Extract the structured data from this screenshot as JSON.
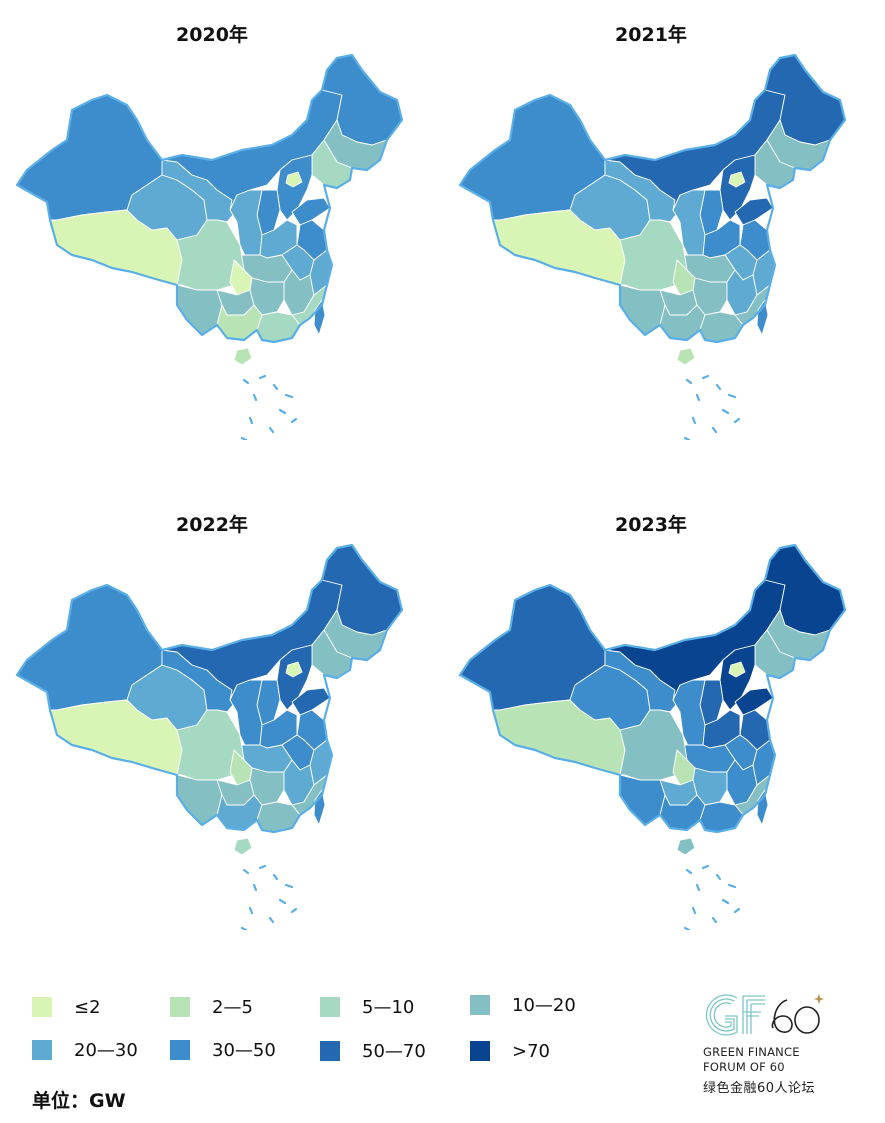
{
  "panels": [
    {
      "id": "p2020",
      "year": "2020年",
      "levels": {
        "xinjiang": 5,
        "tibet": 0,
        "qinghai": 4,
        "gansu": 4,
        "innerMongolia": 5,
        "heilongjiang": 5,
        "jilin": 3,
        "liaoning": 2,
        "hebei": 5,
        "beijing": 0,
        "shandong": 5,
        "shanxi": 5,
        "shaanxi": 4,
        "henan": 4,
        "jiangsu": 5,
        "anhui": 4,
        "hubei": 3,
        "sichuan": 2,
        "chongqing": 0,
        "yunnan": 3,
        "guizhou": 3,
        "hunan": 3,
        "jiangxi": 3,
        "zhejiang": 4,
        "fujian": 2,
        "guangxi": 1,
        "guangdong": 2,
        "hainan": 1,
        "taiwan": 5
      }
    },
    {
      "id": "p2021",
      "year": "2021年",
      "levels": {
        "xinjiang": 5,
        "tibet": 0,
        "qinghai": 4,
        "gansu": 4,
        "innerMongolia": 6,
        "heilongjiang": 6,
        "jilin": 3,
        "liaoning": 3,
        "hebei": 6,
        "beijing": 0,
        "shandong": 6,
        "shanxi": 5,
        "shaanxi": 4,
        "henan": 5,
        "jiangsu": 5,
        "anhui": 4,
        "hubei": 3,
        "sichuan": 2,
        "chongqing": 1,
        "yunnan": 3,
        "guizhou": 3,
        "hunan": 3,
        "jiangxi": 4,
        "zhejiang": 4,
        "fujian": 3,
        "guangxi": 3,
        "guangdong": 3,
        "hainan": 1,
        "taiwan": 5
      }
    },
    {
      "id": "p2022",
      "year": "2022年",
      "levels": {
        "xinjiang": 5,
        "tibet": 0,
        "qinghai": 4,
        "gansu": 5,
        "innerMongolia": 6,
        "heilongjiang": 6,
        "jilin": 3,
        "liaoning": 3,
        "hebei": 6,
        "beijing": 0,
        "shandong": 6,
        "shanxi": 5,
        "shaanxi": 5,
        "henan": 5,
        "jiangsu": 5,
        "anhui": 5,
        "hubei": 4,
        "sichuan": 2,
        "chongqing": 1,
        "yunnan": 3,
        "guizhou": 3,
        "hunan": 3,
        "jiangxi": 4,
        "zhejiang": 4,
        "fujian": 3,
        "guangxi": 4,
        "guangdong": 3,
        "hainan": 2,
        "taiwan": 5
      }
    },
    {
      "id": "p2023",
      "year": "2023年",
      "levels": {
        "xinjiang": 6,
        "tibet": 1,
        "qinghai": 5,
        "gansu": 5,
        "innerMongolia": 7,
        "heilongjiang": 7,
        "jilin": 3,
        "liaoning": 3,
        "hebei": 7,
        "beijing": 0,
        "shandong": 7,
        "shanxi": 6,
        "shaanxi": 5,
        "henan": 6,
        "jiangsu": 6,
        "anhui": 5,
        "hubei": 5,
        "sichuan": 3,
        "chongqing": 1,
        "yunnan": 5,
        "guizhou": 4,
        "hunan": 4,
        "jiangxi": 5,
        "zhejiang": 5,
        "fujian": 3,
        "guangxi": 5,
        "guangdong": 5,
        "hainan": 3,
        "taiwan": 5
      }
    }
  ],
  "legend": [
    {
      "label": "≤2",
      "color": "#d9f5b5"
    },
    {
      "label": "2—5",
      "color": "#b8e3b5"
    },
    {
      "label": "5—10",
      "color": "#a6d9c2"
    },
    {
      "label": "10—20",
      "color": "#84bfc3"
    },
    {
      "label": "20—30",
      "color": "#5eaad2"
    },
    {
      "label": "30—50",
      "color": "#3d8ccb"
    },
    {
      "label": "50—70",
      "color": "#2368b0"
    },
    {
      "label": ">70",
      "color": "#08448f"
    }
  ],
  "unit_label": "单位：GW",
  "logo": {
    "mark": "GF60",
    "line1": "GREEN FINANCE",
    "line2": "FORUM OF 60",
    "cn": "绿色金融60人论坛",
    "colors": {
      "stripe": "#7dc7c8",
      "gold": "#b8924a",
      "text": "#222222"
    }
  }
}
